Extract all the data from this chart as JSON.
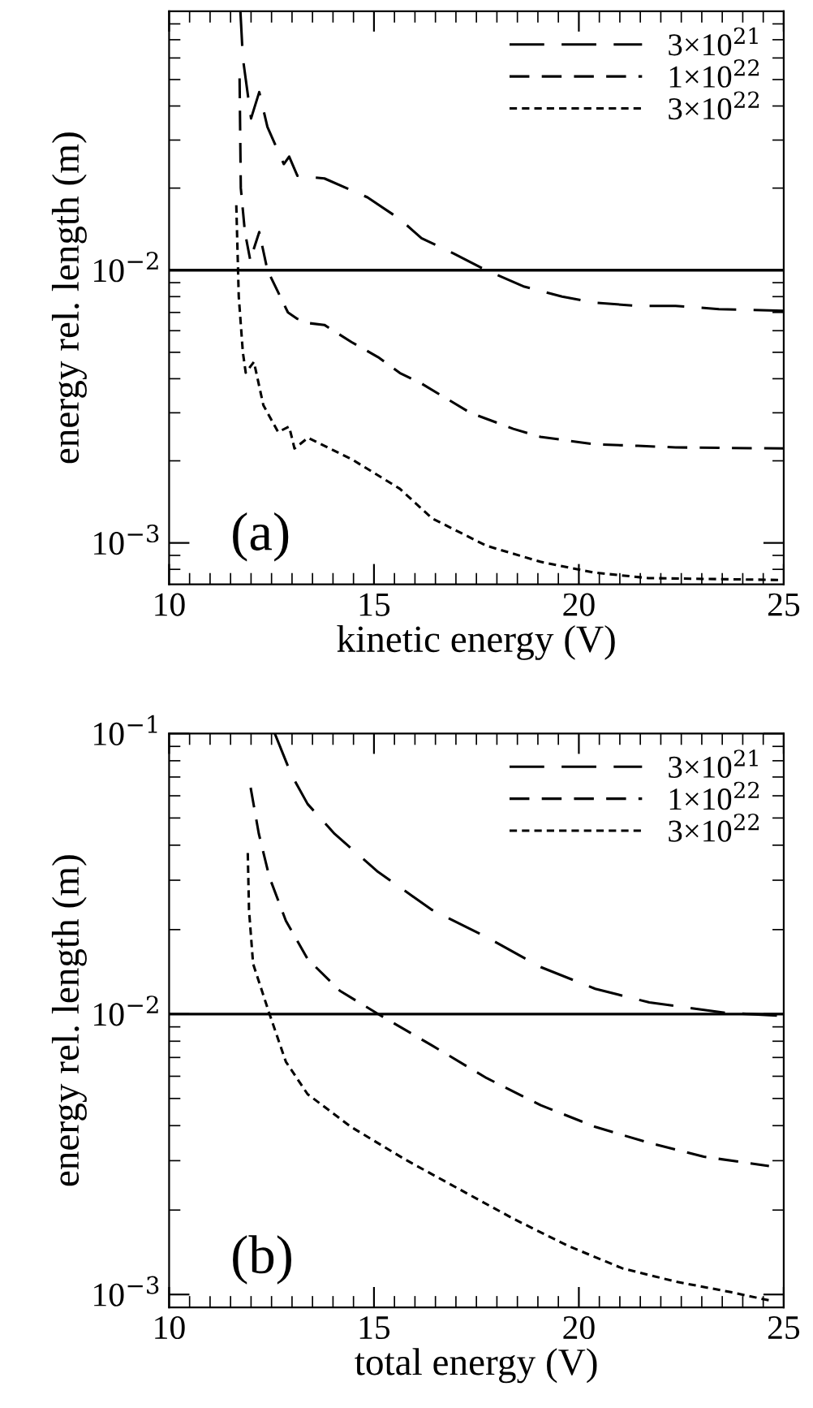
{
  "chart_data": [
    {
      "type": "line",
      "xlabel": "kinetic energy (V)",
      "ylabel": "energy rel. length (m)",
      "log": "y",
      "xlim": [
        10,
        25
      ],
      "xticks": [
        10,
        15,
        20,
        25
      ],
      "ylim": [
        0.000705,
        0.089
      ],
      "yticks": [
        {
          "value": 0.01,
          "label": "10$^{−2}$"
        },
        {
          "value": 0.001,
          "label": "10$^{−3}$"
        }
      ],
      "legend": "top right",
      "annotations": [
        "(a)"
      ],
      "ref_lines": [
        {
          "axis": "y",
          "value": 0.01,
          "color": "#000000",
          "line_style": "solid"
        }
      ],
      "series": [
        {
          "name": "3×10$^{21}$",
          "color": "#000000",
          "line_style": "dashed",
          "x": [
            11.74,
            11.8,
            12.0,
            12.2,
            12.4,
            12.8,
            12.93,
            13.13,
            13.79,
            14.84,
            15.63,
            16.16,
            16.95,
            17.74,
            18.67,
            19.59,
            20.38,
            21.44,
            22.36,
            23.42,
            25
          ],
          "values": [
            0.089,
            0.06,
            0.036,
            0.045,
            0.0335,
            0.0245,
            0.0261,
            0.0222,
            0.0217,
            0.0185,
            0.0154,
            0.0131,
            0.0115,
            0.01,
            0.0087,
            0.008,
            0.0076,
            0.0074,
            0.0074,
            0.0072,
            0.0071
          ]
        },
        {
          "name": "1×10$^{22}$",
          "color": "#000000",
          "line_style": "dashed",
          "x": [
            11.72,
            11.75,
            11.85,
            11.98,
            12.2,
            12.4,
            12.9,
            13.13,
            13.39,
            13.79,
            14.45,
            15.1,
            15.63,
            16.16,
            17.35,
            18.4,
            19.06,
            20.38,
            21.44,
            22.36,
            25
          ],
          "values": [
            0.0505,
            0.02,
            0.0138,
            0.0109,
            0.0138,
            0.01,
            0.007,
            0.00663,
            0.0064,
            0.0063,
            0.00545,
            0.0048,
            0.0042,
            0.00384,
            0.003,
            0.00262,
            0.00245,
            0.0023,
            0.00227,
            0.00224,
            0.00222
          ]
        },
        {
          "name": "3×10$^{22}$",
          "color": "#000000",
          "line_style": "dotted",
          "x": [
            11.64,
            11.7,
            11.8,
            11.87,
            12.07,
            12.3,
            12.66,
            12.93,
            13.06,
            13.39,
            14.45,
            15.63,
            16.42,
            17.74,
            19.06,
            20.38,
            21.7,
            25
          ],
          "values": [
            0.0173,
            0.008,
            0.005,
            0.00421,
            0.00461,
            0.0032,
            0.00255,
            0.00267,
            0.00222,
            0.00243,
            0.00203,
            0.00158,
            0.00123,
            0.000977,
            0.000853,
            0.000778,
            0.000743,
            0.000731
          ]
        }
      ]
    },
    {
      "type": "line",
      "xlabel": "total energy (V)",
      "ylabel": "energy rel. length (m)",
      "log": "y",
      "xlim": [
        10,
        25
      ],
      "xticks": [
        10,
        15,
        20,
        25
      ],
      "ylim": [
        0.0009,
        0.1
      ],
      "yticks": [
        {
          "value": 0.1,
          "label": "10$^{−1}$"
        },
        {
          "value": 0.01,
          "label": "10$^{−2}$"
        },
        {
          "value": 0.001,
          "label": "10$^{−3}$"
        }
      ],
      "legend": "top right",
      "annotations": [
        "(b)"
      ],
      "ref_lines": [
        {
          "axis": "y",
          "value": 0.01,
          "color": "#000000",
          "line_style": "solid"
        }
      ],
      "series": [
        {
          "name": "3×10$^{21}$",
          "color": "#000000",
          "line_style": "dashed",
          "x": [
            12.58,
            12.98,
            13.38,
            14.04,
            15.1,
            16.42,
            17.75,
            19.07,
            20.4,
            21.72,
            23.58,
            24.9
          ],
          "values": [
            0.1,
            0.0716,
            0.0561,
            0.0439,
            0.0321,
            0.0235,
            0.0188,
            0.0147,
            0.0123,
            0.011,
            0.0101,
            0.00987
          ]
        },
        {
          "name": "1×10$^{22}$",
          "color": "#000000",
          "line_style": "dashed",
          "x": [
            11.99,
            12.19,
            12.45,
            12.85,
            13.38,
            14.17,
            15.1,
            16.42,
            17.75,
            19.07,
            20.4,
            21.72,
            23.05,
            24.64
          ],
          "values": [
            0.0641,
            0.0439,
            0.0307,
            0.0215,
            0.0157,
            0.0121,
            0.01,
            0.00772,
            0.00591,
            0.00473,
            0.00396,
            0.00347,
            0.0031,
            0.00287
          ]
        },
        {
          "name": "3×10$^{22}$",
          "color": "#000000",
          "line_style": "dotted",
          "x": [
            11.92,
            11.95,
            12.05,
            12.45,
            12.85,
            13.38,
            14.44,
            15.76,
            17.09,
            18.41,
            19.74,
            21.06,
            22.38,
            23.71,
            24.64
          ],
          "values": [
            0.0375,
            0.0235,
            0.0151,
            0.01,
            0.00676,
            0.00518,
            0.00396,
            0.00303,
            0.00237,
            0.00186,
            0.00149,
            0.00124,
            0.00111,
            0.00102,
            0.000953
          ]
        }
      ]
    }
  ]
}
